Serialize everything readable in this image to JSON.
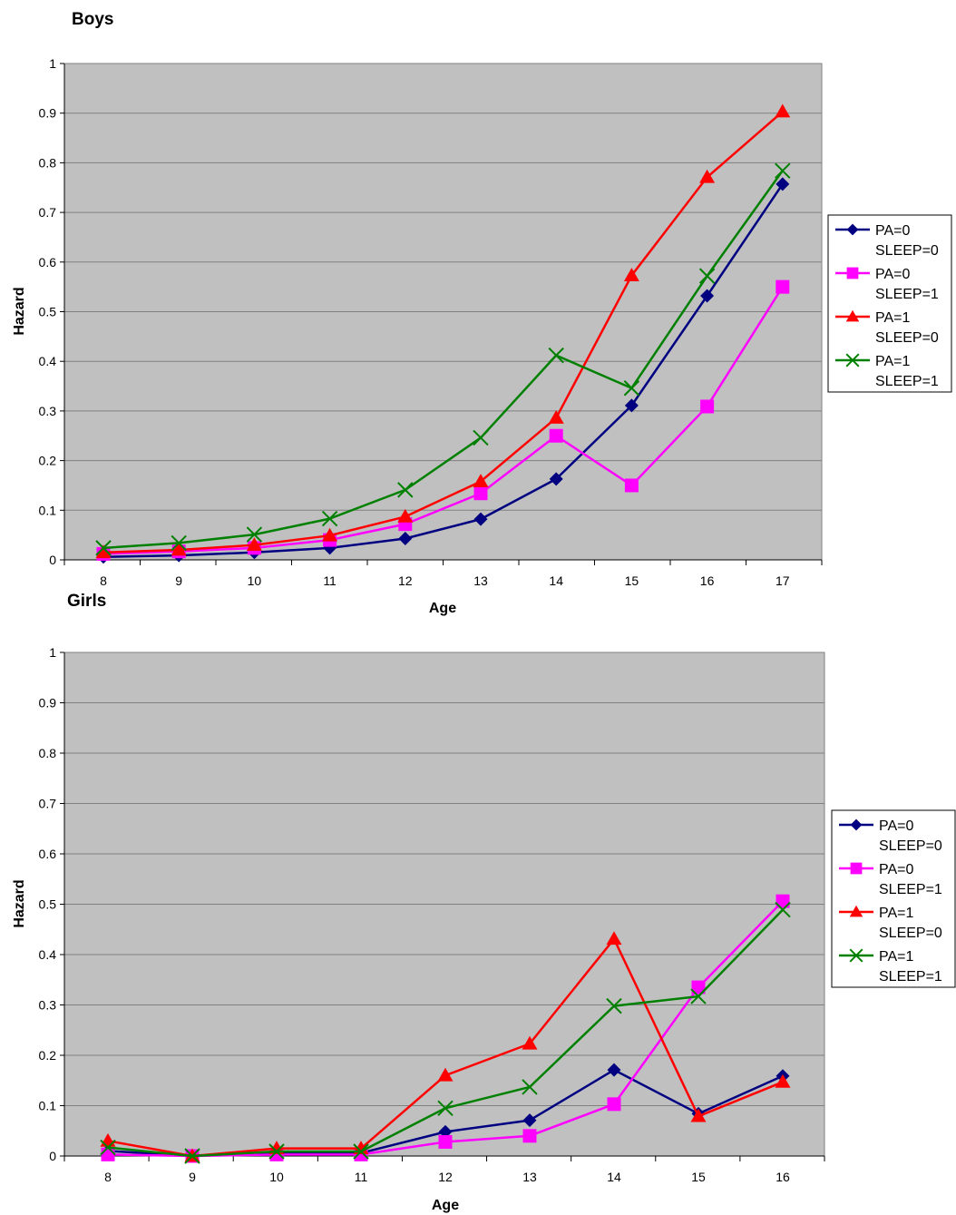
{
  "chart_data": [
    {
      "type": "line",
      "title": "Boys",
      "xlabel": "Age",
      "ylabel": "Hazard",
      "ylim": [
        0,
        1
      ],
      "yticks": [
        "0",
        "0.1",
        "0.2",
        "0.3",
        "0.4",
        "0.5",
        "0.6",
        "0.7",
        "0.8",
        "0.9",
        "1"
      ],
      "categories": [
        "8",
        "9",
        "10",
        "11",
        "12",
        "13",
        "14",
        "15",
        "16",
        "17"
      ],
      "grid": true,
      "legend_position": "right",
      "colors": {
        "plot_background": "#c0c0c0",
        "gridline": "#808080"
      },
      "series": [
        {
          "name_line1": "PA=0",
          "name_line2": "SLEEP=0",
          "color": "#000080",
          "marker": "diamond",
          "values": [
            0.006,
            0.009,
            0.015,
            0.024,
            0.043,
            0.082,
            0.163,
            0.311,
            0.532,
            0.757
          ]
        },
        {
          "name_line1": "PA=0",
          "name_line2": "SLEEP=1",
          "color": "#ff00ff",
          "marker": "square",
          "values": [
            0.012,
            0.017,
            0.024,
            0.04,
            0.072,
            0.134,
            0.25,
            0.15,
            0.309,
            0.55
          ]
        },
        {
          "name_line1": "PA=1",
          "name_line2": "SLEEP=0",
          "color": "#ff0000",
          "marker": "triangle",
          "values": [
            0.015,
            0.02,
            0.03,
            0.049,
            0.087,
            0.158,
            0.286,
            0.573,
            0.771,
            0.903
          ]
        },
        {
          "name_line1": "PA=1",
          "name_line2": "SLEEP=1",
          "color": "#008000",
          "marker": "x",
          "values": [
            0.024,
            0.034,
            0.051,
            0.083,
            0.141,
            0.246,
            0.412,
            0.346,
            0.572,
            0.784
          ]
        }
      ]
    },
    {
      "type": "line",
      "title": "Girls",
      "xlabel": "Age",
      "ylabel": "Hazard",
      "ylim": [
        0,
        1
      ],
      "yticks": [
        "0",
        "0.1",
        "0.2",
        "0.3",
        "0.4",
        "0.5",
        "0.6",
        "0.7",
        "0.8",
        "0.9",
        "1"
      ],
      "categories": [
        "8",
        "9",
        "10",
        "11",
        "12",
        "13",
        "14",
        "15",
        "16"
      ],
      "grid": true,
      "legend_position": "right",
      "colors": {
        "plot_background": "#c0c0c0",
        "gridline": "#808080"
      },
      "series": [
        {
          "name_line1": "PA=0",
          "name_line2": "SLEEP=0",
          "color": "#000080",
          "marker": "diamond",
          "values": [
            0.01,
            0.0,
            0.006,
            0.006,
            0.048,
            0.071,
            0.171,
            0.084,
            0.159
          ]
        },
        {
          "name_line1": "PA=0",
          "name_line2": "SLEEP=1",
          "color": "#ff00ff",
          "marker": "square",
          "values": [
            0.003,
            0.0,
            0.003,
            0.003,
            0.028,
            0.04,
            0.103,
            0.335,
            0.506
          ]
        },
        {
          "name_line1": "PA=1",
          "name_line2": "SLEEP=0",
          "color": "#ff0000",
          "marker": "triangle",
          "values": [
            0.03,
            0.0,
            0.015,
            0.015,
            0.16,
            0.223,
            0.431,
            0.079,
            0.147
          ]
        },
        {
          "name_line1": "PA=1",
          "name_line2": "SLEEP=1",
          "color": "#008000",
          "marker": "x",
          "values": [
            0.017,
            0.0,
            0.009,
            0.009,
            0.095,
            0.137,
            0.298,
            0.317,
            0.489
          ]
        }
      ]
    }
  ]
}
